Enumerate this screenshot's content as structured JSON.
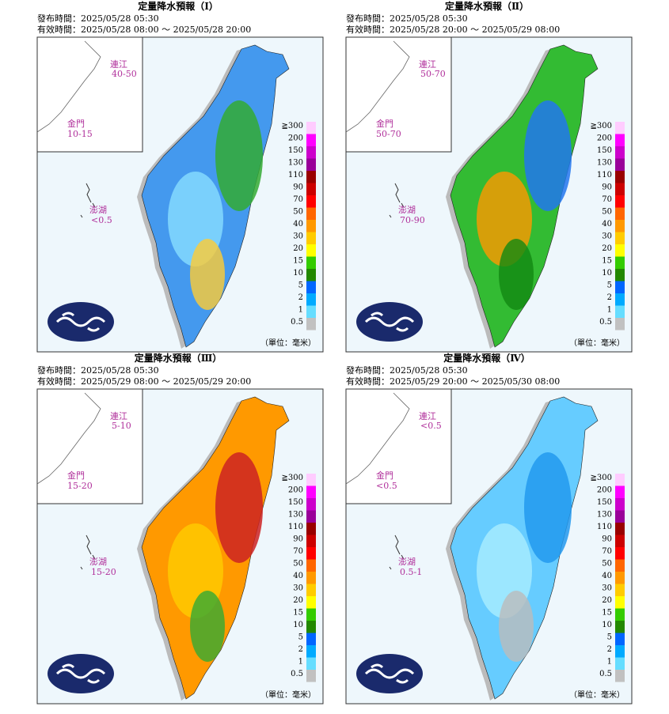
{
  "unit": "（單位：毫米）",
  "legend": [
    {
      "label": "≧300",
      "color": "#ffccff"
    },
    {
      "label": "200",
      "color": "#ff00ff"
    },
    {
      "label": "150",
      "color": "#cc00cc"
    },
    {
      "label": "130",
      "color": "#990099"
    },
    {
      "label": "110",
      "color": "#990000"
    },
    {
      "label": "90",
      "color": "#cc0000"
    },
    {
      "label": "70",
      "color": "#ff0000"
    },
    {
      "label": "50",
      "color": "#ff6600"
    },
    {
      "label": "40",
      "color": "#ff9900"
    },
    {
      "label": "30",
      "color": "#ffcc00"
    },
    {
      "label": "20",
      "color": "#ffff00"
    },
    {
      "label": "15",
      "color": "#33cc00"
    },
    {
      "label": "10",
      "color": "#228800"
    },
    {
      "label": "5",
      "color": "#0066ff"
    },
    {
      "label": "2",
      "color": "#00aaff"
    },
    {
      "label": "1",
      "color": "#66ddff"
    },
    {
      "label": "0.5",
      "color": "#c1c1c1"
    }
  ],
  "panels": [
    {
      "title": "定量降水預報（Ⅰ）",
      "issued": "發布時間：2025/05/28 05:30",
      "valid": "有效時間：2025/05/28 08:00 ～ 2025/05/28 20:00",
      "regions": [
        {
          "name": "連江",
          "value": "40-50"
        },
        {
          "name": "金門",
          "value": "10-15"
        },
        {
          "name": "澎湖",
          "value": "<0.5"
        }
      ]
    },
    {
      "title": "定量降水預報（Ⅱ）",
      "issued": "發布時間：2025/05/28 05:30",
      "valid": "有效時間：2025/05/28 20:00 ～ 2025/05/29 08:00",
      "regions": [
        {
          "name": "連江",
          "value": "50-70"
        },
        {
          "name": "金門",
          "value": "50-70"
        },
        {
          "name": "澎湖",
          "value": "70-90"
        }
      ]
    },
    {
      "title": "定量降水預報（Ⅲ）",
      "issued": "發布時間：2025/05/28 05:30",
      "valid": "有效時間：2025/05/29 08:00 ～ 2025/05/29 20:00",
      "regions": [
        {
          "name": "連江",
          "value": "5-10"
        },
        {
          "name": "金門",
          "value": "15-20"
        },
        {
          "name": "澎湖",
          "value": "15-20"
        }
      ]
    },
    {
      "title": "定量降水預報（Ⅳ）",
      "issued": "發布時間：2025/05/28 05:30",
      "valid": "有效時間：2025/05/29 20:00 ～ 2025/05/30 08:00",
      "regions": [
        {
          "name": "連江",
          "value": "<0.5"
        },
        {
          "name": "金門",
          "value": "<0.5"
        },
        {
          "name": "澎湖",
          "value": "0.5-1"
        }
      ]
    }
  ]
}
